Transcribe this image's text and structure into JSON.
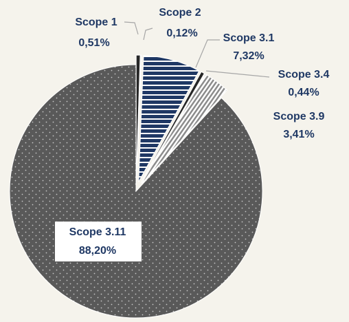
{
  "chart_data": {
    "type": "pie",
    "categories": [
      "Scope 1",
      "Scope 2",
      "Scope 3.1",
      "Scope 3.4",
      "Scope 3.9",
      "Scope 3.11"
    ],
    "values": [
      0.51,
      0.12,
      7.32,
      0.44,
      3.41,
      88.2
    ],
    "value_labels": [
      "0,51%",
      "0,12%",
      "7,32%",
      "0,44%",
      "3,41%",
      "88,20%"
    ],
    "colors": [
      "#262626",
      "#d9d9d9",
      "#1f3864",
      "#262626",
      "#a6a6a6",
      "#595959"
    ],
    "patterns": [
      "solid",
      "solid",
      "horizontal-stripes",
      "solid",
      "diagonal-hatch",
      "dots"
    ]
  }
}
